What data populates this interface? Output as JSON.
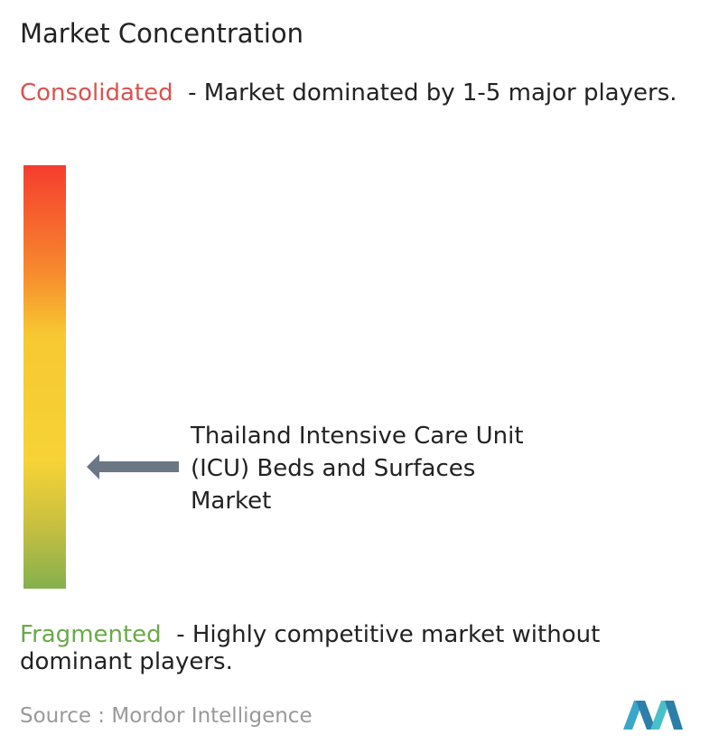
{
  "header": {
    "title": "Market Concentration"
  },
  "scale": {
    "top": {
      "label": "Consolidated",
      "description": "- Market dominated by 1-5 major players."
    },
    "bottom": {
      "label": "Fragmented",
      "description": "- Highly competitive market without dominant players."
    }
  },
  "marker": {
    "label": "Thailand Intensive Care Unit (ICU) Beds and Surfaces Market"
  },
  "footer": {
    "source_label": "Source :",
    "source": "Mordor Intelligence"
  }
}
